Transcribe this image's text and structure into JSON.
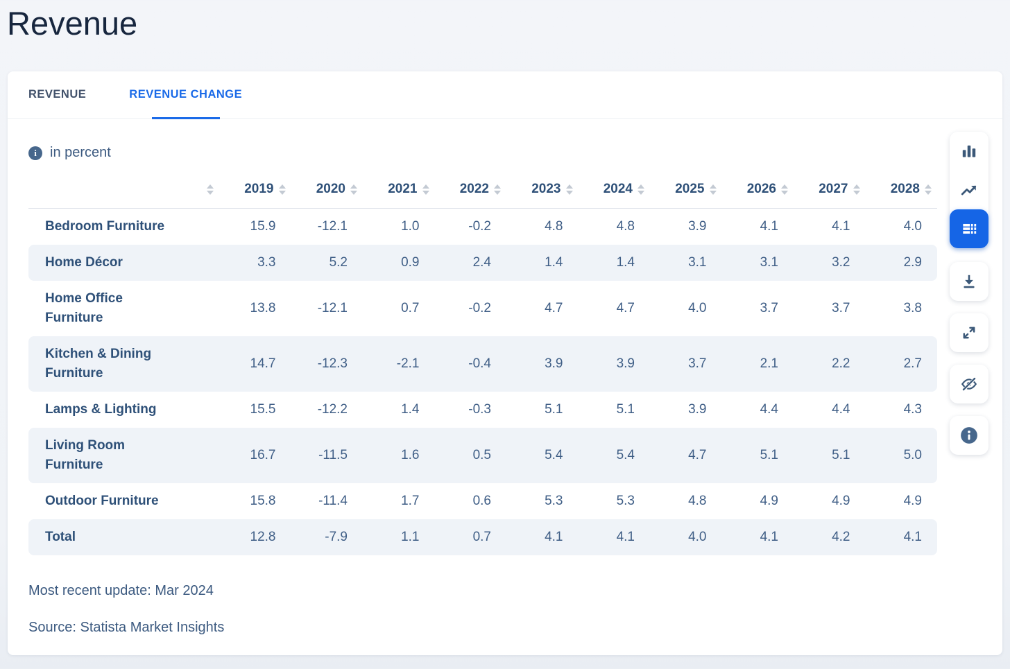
{
  "page": {
    "title": "Revenue"
  },
  "tabs": [
    {
      "label": "REVENUE",
      "active": false
    },
    {
      "label": "REVENUE CHANGE",
      "active": true
    }
  ],
  "meta": {
    "unit_label": "in percent",
    "info_icon": "info-icon"
  },
  "table": {
    "years": [
      "2019",
      "2020",
      "2021",
      "2022",
      "2023",
      "2024",
      "2025",
      "2026",
      "2027",
      "2028"
    ],
    "rows": [
      {
        "label": "Bedroom Furniture",
        "values": [
          "15.9",
          "-12.1",
          "1.0",
          "-0.2",
          "4.8",
          "4.8",
          "3.9",
          "4.1",
          "4.1",
          "4.0"
        ]
      },
      {
        "label": "Home Décor",
        "values": [
          "3.3",
          "5.2",
          "0.9",
          "2.4",
          "1.4",
          "1.4",
          "3.1",
          "3.1",
          "3.2",
          "2.9"
        ]
      },
      {
        "label": "Home Office\nFurniture",
        "values": [
          "13.8",
          "-12.1",
          "0.7",
          "-0.2",
          "4.7",
          "4.7",
          "4.0",
          "3.7",
          "3.7",
          "3.8"
        ]
      },
      {
        "label": "Kitchen & Dining\nFurniture",
        "values": [
          "14.7",
          "-12.3",
          "-2.1",
          "-0.4",
          "3.9",
          "3.9",
          "3.7",
          "2.1",
          "2.2",
          "2.7"
        ]
      },
      {
        "label": "Lamps & Lighting",
        "values": [
          "15.5",
          "-12.2",
          "1.4",
          "-0.3",
          "5.1",
          "5.1",
          "3.9",
          "4.4",
          "4.4",
          "4.3"
        ]
      },
      {
        "label": "Living Room\nFurniture",
        "values": [
          "16.7",
          "-11.5",
          "1.6",
          "0.5",
          "5.4",
          "5.4",
          "4.7",
          "5.1",
          "5.1",
          "5.0"
        ]
      },
      {
        "label": "Outdoor Furniture",
        "values": [
          "15.8",
          "-11.4",
          "1.7",
          "0.6",
          "5.3",
          "5.3",
          "4.8",
          "4.9",
          "4.9",
          "4.9"
        ]
      },
      {
        "label": "Total",
        "values": [
          "12.8",
          "-7.9",
          "1.1",
          "0.7",
          "4.1",
          "4.1",
          "4.0",
          "4.1",
          "4.2",
          "4.1"
        ]
      }
    ]
  },
  "footer": {
    "update": "Most recent update: Mar 2024",
    "source": "Source: Statista Market Insights"
  },
  "toolbar": {
    "views": [
      {
        "name": "bar-chart-view",
        "icon": "bar-chart-icon",
        "active": false
      },
      {
        "name": "line-chart-view",
        "icon": "line-chart-icon",
        "active": false
      },
      {
        "name": "table-view",
        "icon": "table-icon",
        "active": true
      }
    ],
    "actions": [
      {
        "name": "download",
        "icon": "download-icon"
      },
      {
        "name": "expand",
        "icon": "expand-icon"
      },
      {
        "name": "hide",
        "icon": "eye-off-icon"
      },
      {
        "name": "info",
        "icon": "info-circle-icon"
      }
    ]
  },
  "colors": {
    "accent_blue": "#1565e6",
    "tab_active_blue": "#1a6ae8",
    "icon_slate": "#3b5878",
    "heading_navy": "#17263e",
    "text_slate": "#3f5e86",
    "row_stripe": "#eff3f8"
  }
}
